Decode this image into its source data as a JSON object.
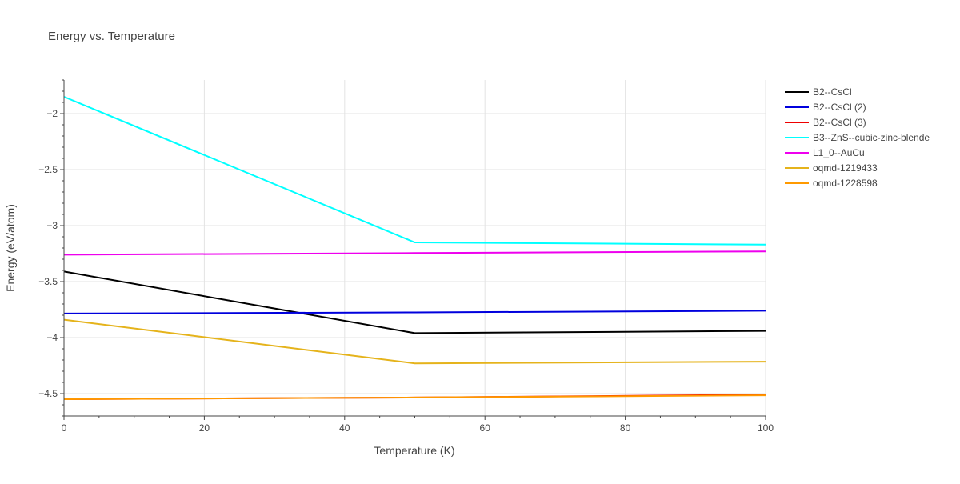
{
  "chart_data": {
    "type": "line",
    "title": "Energy vs. Temperature",
    "xlabel": "Temperature (K)",
    "ylabel": "Energy (eV/atom)",
    "xlim": [
      0,
      100
    ],
    "ylim": [
      -4.7,
      -1.7
    ],
    "x_ticks": [
      0,
      20,
      40,
      60,
      80,
      100
    ],
    "x_tick_labels": [
      "0",
      "20",
      "40",
      "60",
      "80",
      "100"
    ],
    "y_ticks": [
      -4.5,
      -4,
      -3.5,
      -3,
      -2.5,
      -2
    ],
    "y_tick_labels": [
      "−4.5",
      "−4",
      "−3.5",
      "−3",
      "−2.5",
      "−2"
    ],
    "grid": true,
    "legend_position": "right",
    "series": [
      {
        "name": "B2--CsCl",
        "color": "#000000",
        "x": [
          0,
          50,
          100
        ],
        "y": [
          -3.41,
          -3.96,
          -3.94
        ]
      },
      {
        "name": "B2--CsCl (2)",
        "color": "#0000dd",
        "x": [
          0,
          50,
          100
        ],
        "y": [
          -3.785,
          -3.775,
          -3.76
        ]
      },
      {
        "name": "B2--CsCl (3)",
        "color": "#ee0000",
        "x": [
          0,
          50,
          100
        ],
        "y": [
          -4.55,
          -4.535,
          -4.51
        ]
      },
      {
        "name": "B3--ZnS--cubic-zinc-blende",
        "color": "#00ffff",
        "x": [
          0,
          50,
          100
        ],
        "y": [
          -1.85,
          -3.15,
          -3.17
        ]
      },
      {
        "name": "L1_0--AuCu",
        "color": "#ee00ee",
        "x": [
          0,
          50,
          100
        ],
        "y": [
          -3.26,
          -3.245,
          -3.23
        ]
      },
      {
        "name": "oqmd-1219433",
        "color": "#e5b31b",
        "x": [
          0,
          50,
          100
        ],
        "y": [
          -3.84,
          -4.23,
          -4.215
        ]
      },
      {
        "name": "oqmd-1228598",
        "color": "#ff9a00",
        "x": [
          0,
          50,
          100
        ],
        "y": [
          -4.55,
          -4.535,
          -4.515
        ]
      }
    ]
  }
}
